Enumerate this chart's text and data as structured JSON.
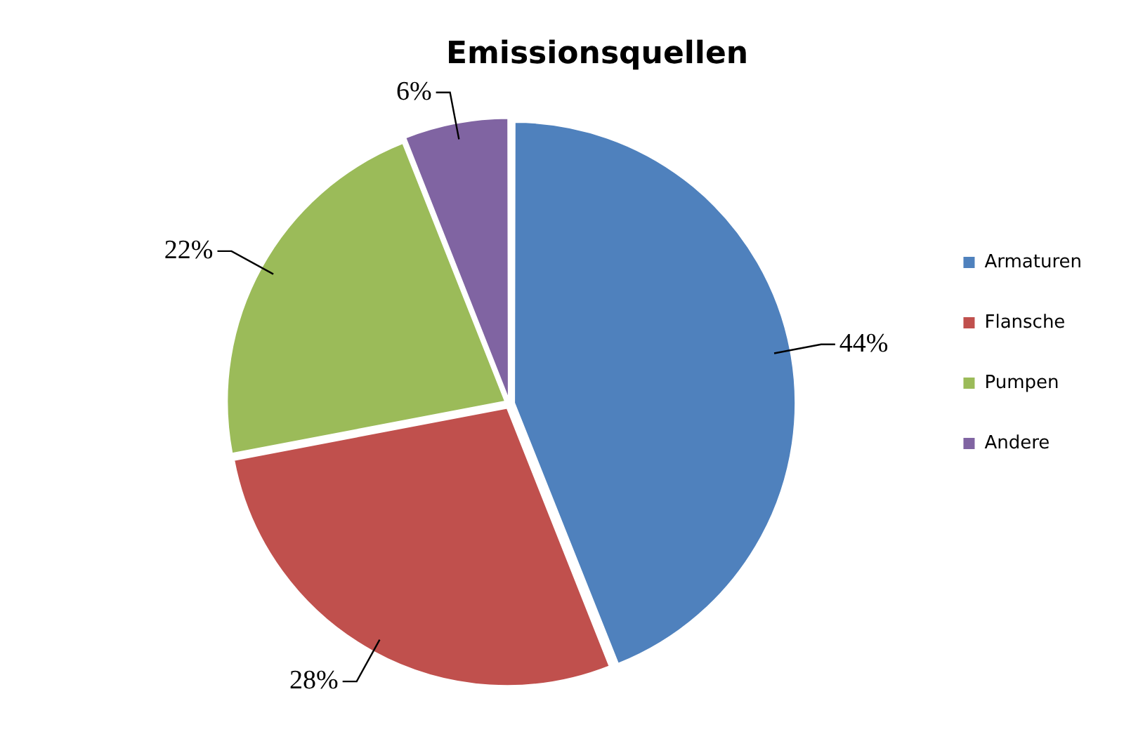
{
  "chart_data": {
    "type": "pie",
    "title": "Emissionsquellen",
    "categories": [
      "Armaturen",
      "Flansche",
      "Pumpen",
      "Andere"
    ],
    "values": [
      44,
      28,
      22,
      6
    ],
    "colors": [
      "#4f81bd",
      "#c0504d",
      "#9bbb59",
      "#8064a2"
    ],
    "value_labels": [
      "44%",
      "28%",
      "22%",
      "6%"
    ],
    "legend": "right"
  }
}
